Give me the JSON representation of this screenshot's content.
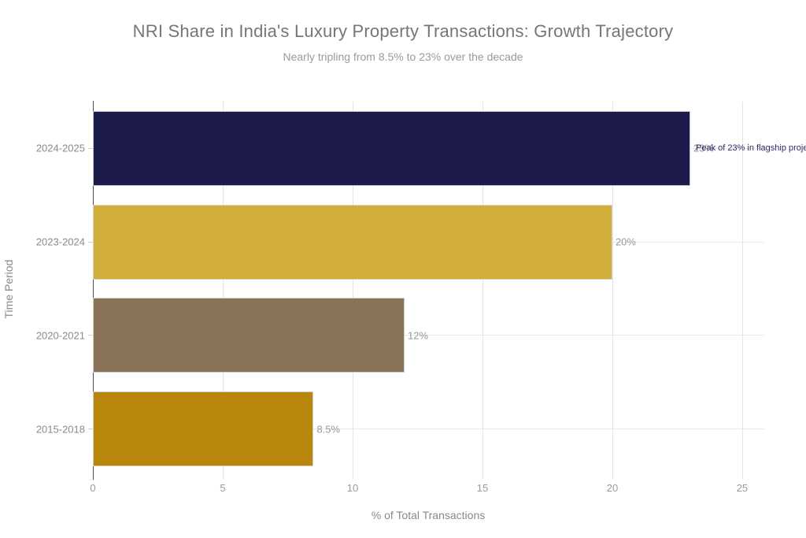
{
  "chart_data": {
    "type": "bar",
    "orientation": "horizontal",
    "title": "NRI Share in India's Luxury Property Transactions: Growth Trajectory",
    "subtitle": "Nearly tripling from 8.5% to 23% over the decade",
    "xlabel": "% of Total Transactions",
    "ylabel": "Time Period",
    "categories": [
      "2024-2025",
      "2023-2024",
      "2020-2021",
      "2015-2018"
    ],
    "values": [
      23,
      20,
      12,
      8.5
    ],
    "value_labels": [
      "23%",
      "20%",
      "12%",
      "8.5%"
    ],
    "bar_colors": [
      "#1d1b4b",
      "#d1ae3a",
      "#8a7458",
      "#b8860b"
    ],
    "xticks": [
      0,
      5,
      10,
      15,
      20,
      25
    ],
    "xtick_labels": [
      "0",
      "5",
      "10",
      "15",
      "20",
      "25"
    ],
    "xlim": [
      0,
      25.85
    ],
    "grid": true,
    "legend": "none",
    "annotation": {
      "text": "Peak of 23% in flagship proje",
      "color": "#2b2b6d"
    },
    "colors": {
      "title": "#767676",
      "subtitle": "#9a9a9a",
      "axis_labels": "#8a8a8a",
      "tick_labels": "#999999",
      "grid": "#e9e9e9",
      "zeroline": "#4d4d4d",
      "background": "#ffffff"
    }
  }
}
